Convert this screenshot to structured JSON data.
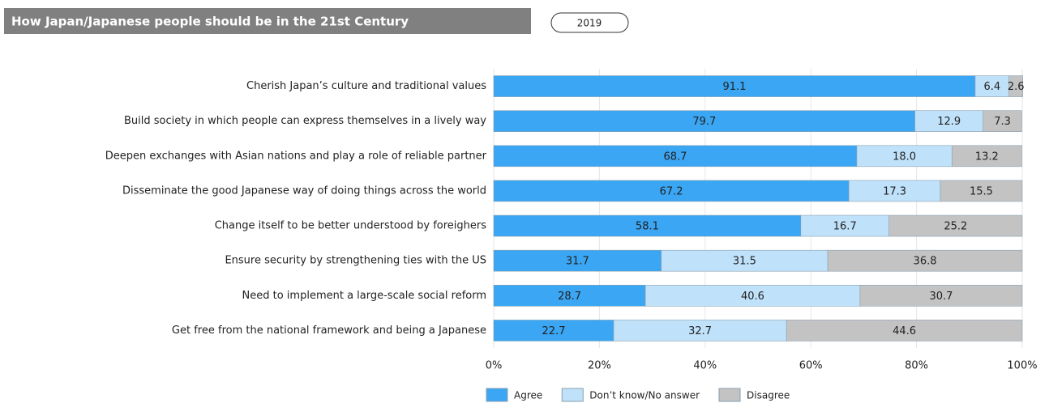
{
  "chart_data": {
    "type": "bar",
    "orientation": "horizontal",
    "stacked": true,
    "title": "How Japan/Japanese people should be in the 21st Century",
    "year": "2019",
    "categories": [
      "Cherish Japan’s culture and traditional values",
      "Build society in which people can express themselves in a lively way",
      "Deepen exchanges with Asian nations and play a role of reliable partner",
      "Disseminate the good Japanese way of doing things across the world",
      "Change itself to be better understood by foreighers",
      "Ensure security by strengthening ties with the US",
      "Need to implement a large-scale social reform",
      "Get free from the national framework and being a Japanese"
    ],
    "series": [
      {
        "name": "Agree",
        "color": "#3aa6f4",
        "values": [
          91.1,
          79.7,
          68.7,
          67.2,
          58.1,
          31.7,
          28.7,
          22.7
        ],
        "value_labels": [
          "91.1",
          "79.7",
          "68.7",
          "67.2",
          "58.1",
          "31.7",
          "28.7",
          "22.7"
        ]
      },
      {
        "name": "Don’t know/No answer",
        "color": "#bfe1fa",
        "values": [
          6.4,
          12.9,
          18.0,
          17.3,
          16.7,
          31.5,
          40.6,
          32.7
        ],
        "value_labels": [
          "6.4",
          "12.9",
          "18.0",
          "17.3",
          "16.7",
          "31.5",
          "40.6",
          "32.7"
        ]
      },
      {
        "name": "Disagree",
        "color": "#c3c3c3",
        "values": [
          2.6,
          7.3,
          13.2,
          15.5,
          25.2,
          36.8,
          30.7,
          44.6
        ],
        "value_labels": [
          "2.6",
          "7.3",
          "13.2",
          "15.5",
          "25.2",
          "36.8",
          "30.7",
          "44.6"
        ]
      }
    ],
    "xlim": [
      0,
      100
    ],
    "xticks": [
      {
        "value": 0,
        "label": "0%"
      },
      {
        "value": 20,
        "label": "20%"
      },
      {
        "value": 40,
        "label": "40%"
      },
      {
        "value": 60,
        "label": "60%"
      },
      {
        "value": 80,
        "label": "80%"
      },
      {
        "value": 100,
        "label": "100%"
      }
    ],
    "legend": "bottom"
  }
}
